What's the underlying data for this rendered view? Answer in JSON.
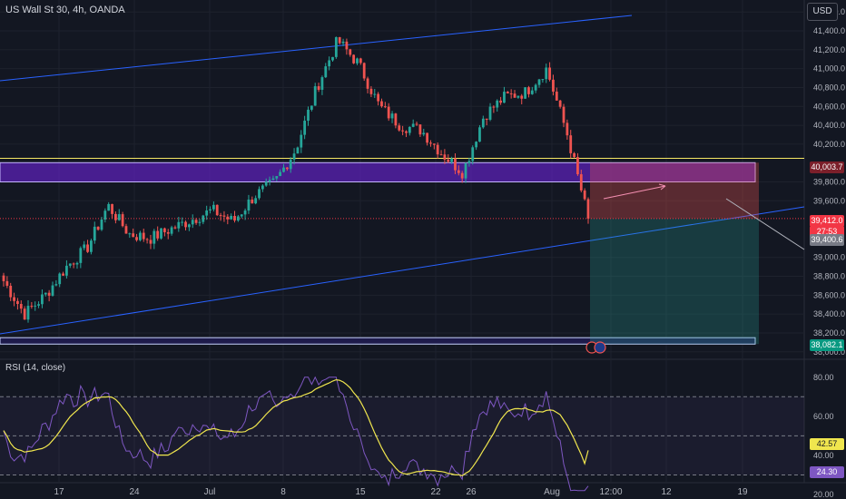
{
  "header": {
    "title": "US Wall St 30, 4h, OANDA",
    "currency": "USD"
  },
  "rsi": {
    "label": "RSI (14, close)",
    "value_label": "24.30",
    "ma_label": "42.57"
  },
  "price_axis": {
    "ticks": [
      "41,600.0",
      "41,400.0",
      "41,200.0",
      "41,000.0",
      "40,800.0",
      "40,600.0",
      "40,400.0",
      "40,200.0",
      "39,800.0",
      "39,600.0",
      "39,000.0",
      "38,800.0",
      "38,600.0",
      "38,400.0",
      "38,200.0",
      "38,000.0"
    ],
    "badges": {
      "upper_zone": "40,003.7",
      "last_price": "39,412.0",
      "countdown": "27:53",
      "close_price": "39,400.6",
      "lower_zone": "38,082.1"
    }
  },
  "rsi_axis": {
    "ticks": [
      "80.00",
      "60.00",
      "40.00",
      "20.00"
    ]
  },
  "time_axis": {
    "ticks": [
      "17",
      "24",
      "Jul",
      "8",
      "15",
      "22",
      "26",
      "Aug",
      "12:00",
      "12",
      "19"
    ]
  },
  "colors": {
    "background": "#131722",
    "bull": "#26a69a",
    "bear": "#ef5350",
    "channel": "#2962ff",
    "zone": "#7b2ff7",
    "rsi_line": "#7e57c2",
    "rsi_ma": "#f0e64e",
    "support_line": "#f5e663"
  },
  "chart_data": {
    "type": "candlestick",
    "symbol": "US Wall St 30",
    "timeframe": "4h",
    "y_range": [
      37950,
      41650
    ],
    "anchor_points": [
      {
        "x": "Jun 12",
        "close": 38750
      },
      {
        "x": "Jun 14",
        "close": 38400
      },
      {
        "x": "Jun 17",
        "close": 38600
      },
      {
        "x": "Jun 19",
        "close": 38900
      },
      {
        "x": "Jun 21",
        "close": 39100
      },
      {
        "x": "Jun 24",
        "close": 39550
      },
      {
        "x": "Jun 25",
        "close": 39250
      },
      {
        "x": "Jun 27",
        "close": 39200
      },
      {
        "x": "Jul 1",
        "close": 39300
      },
      {
        "x": "Jul 3",
        "close": 39400
      },
      {
        "x": "Jul 5",
        "close": 39500
      },
      {
        "x": "Jul 8",
        "close": 39380
      },
      {
        "x": "Jul 10",
        "close": 39650
      },
      {
        "x": "Jul 12",
        "close": 39800
      },
      {
        "x": "Jul 15",
        "close": 40150
      },
      {
        "x": "Jul 16",
        "close": 40800
      },
      {
        "x": "Jul 17",
        "close": 41300
      },
      {
        "x": "Jul 18",
        "close": 41050
      },
      {
        "x": "Jul 19",
        "close": 40600
      },
      {
        "x": "Jul 22",
        "close": 40400
      },
      {
        "x": "Jul 23",
        "close": 40350
      },
      {
        "x": "Jul 24",
        "close": 40100
      },
      {
        "x": "Jul 25",
        "close": 39900
      },
      {
        "x": "Jul 26",
        "close": 40500
      },
      {
        "x": "Jul 29",
        "close": 40700
      },
      {
        "x": "Jul 30",
        "close": 40750
      },
      {
        "x": "Jul 31",
        "close": 41000
      },
      {
        "x": "Aug 1",
        "close": 40300
      },
      {
        "x": "Aug 2",
        "close": 39412
      }
    ],
    "last_price": 39412.0,
    "upper_zone": [
      39800,
      40003.7
    ],
    "lower_zone": [
      38082.1,
      38150
    ],
    "support_line_level": 40050,
    "position": {
      "entry": 39412.0,
      "stop": 40003.7,
      "target": 38082.1
    },
    "rsi": {
      "period": 14,
      "source": "close",
      "value": 24.3,
      "ma": 42.57,
      "levels": [
        70,
        50,
        30
      ],
      "range": [
        20,
        85
      ]
    }
  }
}
